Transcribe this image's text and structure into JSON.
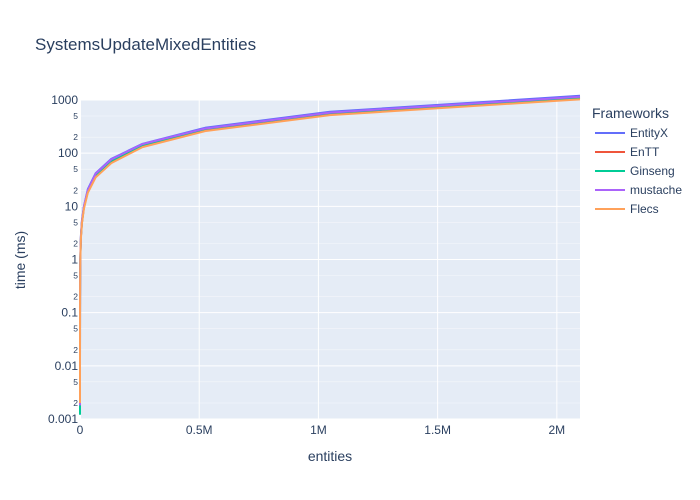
{
  "chart_data": {
    "type": "line",
    "title": "SystemsUpdateMixedEntities",
    "xlabel": "entities",
    "ylabel": "time (ms)",
    "x_scale": "linear",
    "y_scale": "log",
    "xlim": [
      0,
      2097152
    ],
    "ylim": [
      0.001,
      1000
    ],
    "x_ticks": [
      {
        "value": 0,
        "label": "0"
      },
      {
        "value": 500000,
        "label": "0.5M"
      },
      {
        "value": 1000000,
        "label": "1M"
      },
      {
        "value": 1500000,
        "label": "1.5M"
      },
      {
        "value": 2000000,
        "label": "2M"
      }
    ],
    "y_major_ticks": [
      {
        "value": 0.001,
        "label": "0.001"
      },
      {
        "value": 0.01,
        "label": "0.01"
      },
      {
        "value": 0.1,
        "label": "0.1"
      },
      {
        "value": 1,
        "label": "1"
      },
      {
        "value": 10,
        "label": "10"
      },
      {
        "value": 100,
        "label": "100"
      },
      {
        "value": 1000,
        "label": "1000"
      }
    ],
    "y_minor_ticks": [
      {
        "value": 0.002,
        "label": "2"
      },
      {
        "value": 0.005,
        "label": "5"
      },
      {
        "value": 0.02,
        "label": "2"
      },
      {
        "value": 0.05,
        "label": "5"
      },
      {
        "value": 0.2,
        "label": "2"
      },
      {
        "value": 0.5,
        "label": "5"
      },
      {
        "value": 2,
        "label": "2"
      },
      {
        "value": 5,
        "label": "5"
      },
      {
        "value": 20,
        "label": "2"
      },
      {
        "value": 50,
        "label": "5"
      },
      {
        "value": 200,
        "label": "2"
      },
      {
        "value": 500,
        "label": "5"
      }
    ],
    "x": [
      1,
      4,
      8,
      16,
      32,
      64,
      128,
      256,
      512,
      1024,
      2048,
      4096,
      8192,
      16384,
      32768,
      65536,
      131072,
      262144,
      524288,
      1048576,
      2097152
    ],
    "series": [
      {
        "name": "EntityX",
        "color": "#636efa",
        "values": [
          0.0025,
          0.004,
          0.007,
          0.012,
          0.025,
          0.05,
          0.1,
          0.2,
          0.4,
          0.8,
          1.5,
          3.0,
          5.5,
          10,
          21,
          42,
          78,
          150,
          300,
          600,
          1200
        ]
      },
      {
        "name": "EnTT",
        "color": "#ef553b",
        "values": [
          0.0015,
          0.0028,
          0.0055,
          0.01,
          0.021,
          0.045,
          0.09,
          0.18,
          0.36,
          0.72,
          1.4,
          2.8,
          5.0,
          9.5,
          19,
          38,
          70,
          140,
          280,
          560,
          1100
        ]
      },
      {
        "name": "Ginseng",
        "color": "#00cc96",
        "values": [
          0.0012,
          0.0026,
          0.005,
          0.0095,
          0.02,
          0.043,
          0.088,
          0.18,
          0.36,
          0.72,
          1.4,
          2.8,
          5.0,
          9.6,
          19,
          38,
          72,
          142,
          285,
          570,
          1120
        ]
      },
      {
        "name": "mustache",
        "color": "#ab63fa",
        "values": [
          0.0018,
          0.003,
          0.006,
          0.011,
          0.023,
          0.047,
          0.095,
          0.19,
          0.38,
          0.76,
          1.5,
          2.9,
          5.3,
          10,
          20,
          41,
          76,
          148,
          290,
          580,
          1150
        ]
      },
      {
        "name": "Flecs",
        "color": "#ffa15a",
        "values": [
          0.002,
          0.0032,
          0.006,
          0.011,
          0.022,
          0.044,
          0.088,
          0.17,
          0.34,
          0.68,
          1.3,
          2.6,
          4.8,
          9.0,
          18,
          35,
          65,
          130,
          260,
          520,
          1030
        ]
      }
    ],
    "legend": {
      "title": "Frameworks",
      "placement": "right"
    },
    "grid": true,
    "colors": {
      "plot_bg": "#e5ecf6",
      "grid": "#ffffff",
      "text": "#2a3f5f"
    }
  }
}
